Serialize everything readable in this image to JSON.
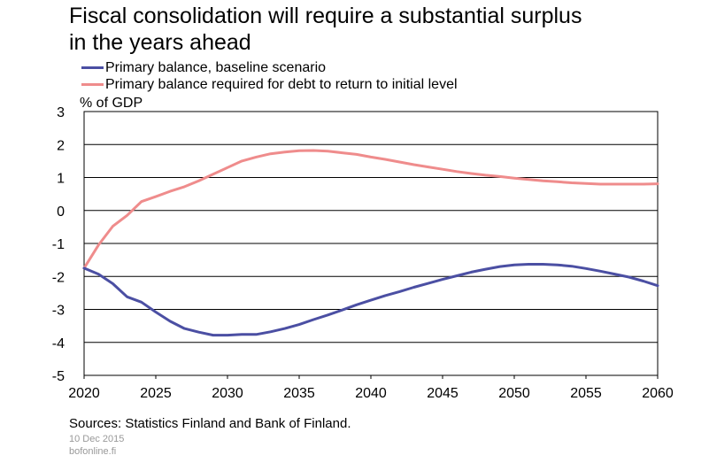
{
  "title_line1": "Fiscal consolidation will require a substantial surplus",
  "title_line2": "in the years ahead",
  "unit_label": "% of GDP",
  "source": "Sources: Statistics Finland and Bank of Finland.",
  "date": "10 Dec 2015",
  "site": "bofonline.fi",
  "chart_data": {
    "type": "line",
    "xlim": [
      2020,
      2060
    ],
    "ylim": [
      -5,
      3
    ],
    "ylabel": "% of GDP",
    "x_ticks": [
      2020,
      2025,
      2030,
      2035,
      2040,
      2045,
      2050,
      2055,
      2060
    ],
    "y_ticks": [
      3,
      2,
      1,
      0,
      -1,
      -2,
      -3,
      -4,
      -5
    ],
    "grid": true,
    "legend_placement": "top-left",
    "x": [
      2020,
      2021,
      2022,
      2023,
      2024,
      2025,
      2026,
      2027,
      2028,
      2029,
      2030,
      2031,
      2032,
      2033,
      2034,
      2035,
      2036,
      2037,
      2038,
      2039,
      2040,
      2041,
      2042,
      2043,
      2044,
      2045,
      2046,
      2047,
      2048,
      2049,
      2050,
      2051,
      2052,
      2053,
      2054,
      2055,
      2056,
      2057,
      2058,
      2059,
      2060
    ],
    "series": [
      {
        "name": "Primary balance, baseline scenario",
        "color": "#4b4fa3",
        "values": [
          -1.75,
          -1.93,
          -2.22,
          -2.62,
          -2.78,
          -3.08,
          -3.36,
          -3.58,
          -3.69,
          -3.78,
          -3.78,
          -3.76,
          -3.76,
          -3.68,
          -3.58,
          -3.46,
          -3.31,
          -3.17,
          -3.02,
          -2.86,
          -2.72,
          -2.58,
          -2.46,
          -2.33,
          -2.21,
          -2.09,
          -1.98,
          -1.87,
          -1.78,
          -1.7,
          -1.65,
          -1.63,
          -1.63,
          -1.65,
          -1.69,
          -1.76,
          -1.84,
          -1.93,
          -2.02,
          -2.14,
          -2.28
        ]
      },
      {
        "name": "Primary balance required for debt to return to initial level",
        "color": "#ef8c8c",
        "values": [
          -1.75,
          -1.05,
          -0.48,
          -0.15,
          0.27,
          0.42,
          0.58,
          0.72,
          0.9,
          1.1,
          1.3,
          1.5,
          1.62,
          1.72,
          1.77,
          1.81,
          1.82,
          1.8,
          1.75,
          1.7,
          1.62,
          1.55,
          1.47,
          1.39,
          1.32,
          1.25,
          1.18,
          1.12,
          1.07,
          1.03,
          0.98,
          0.94,
          0.9,
          0.87,
          0.84,
          0.82,
          0.8,
          0.8,
          0.8,
          0.8,
          0.81
        ]
      }
    ]
  }
}
